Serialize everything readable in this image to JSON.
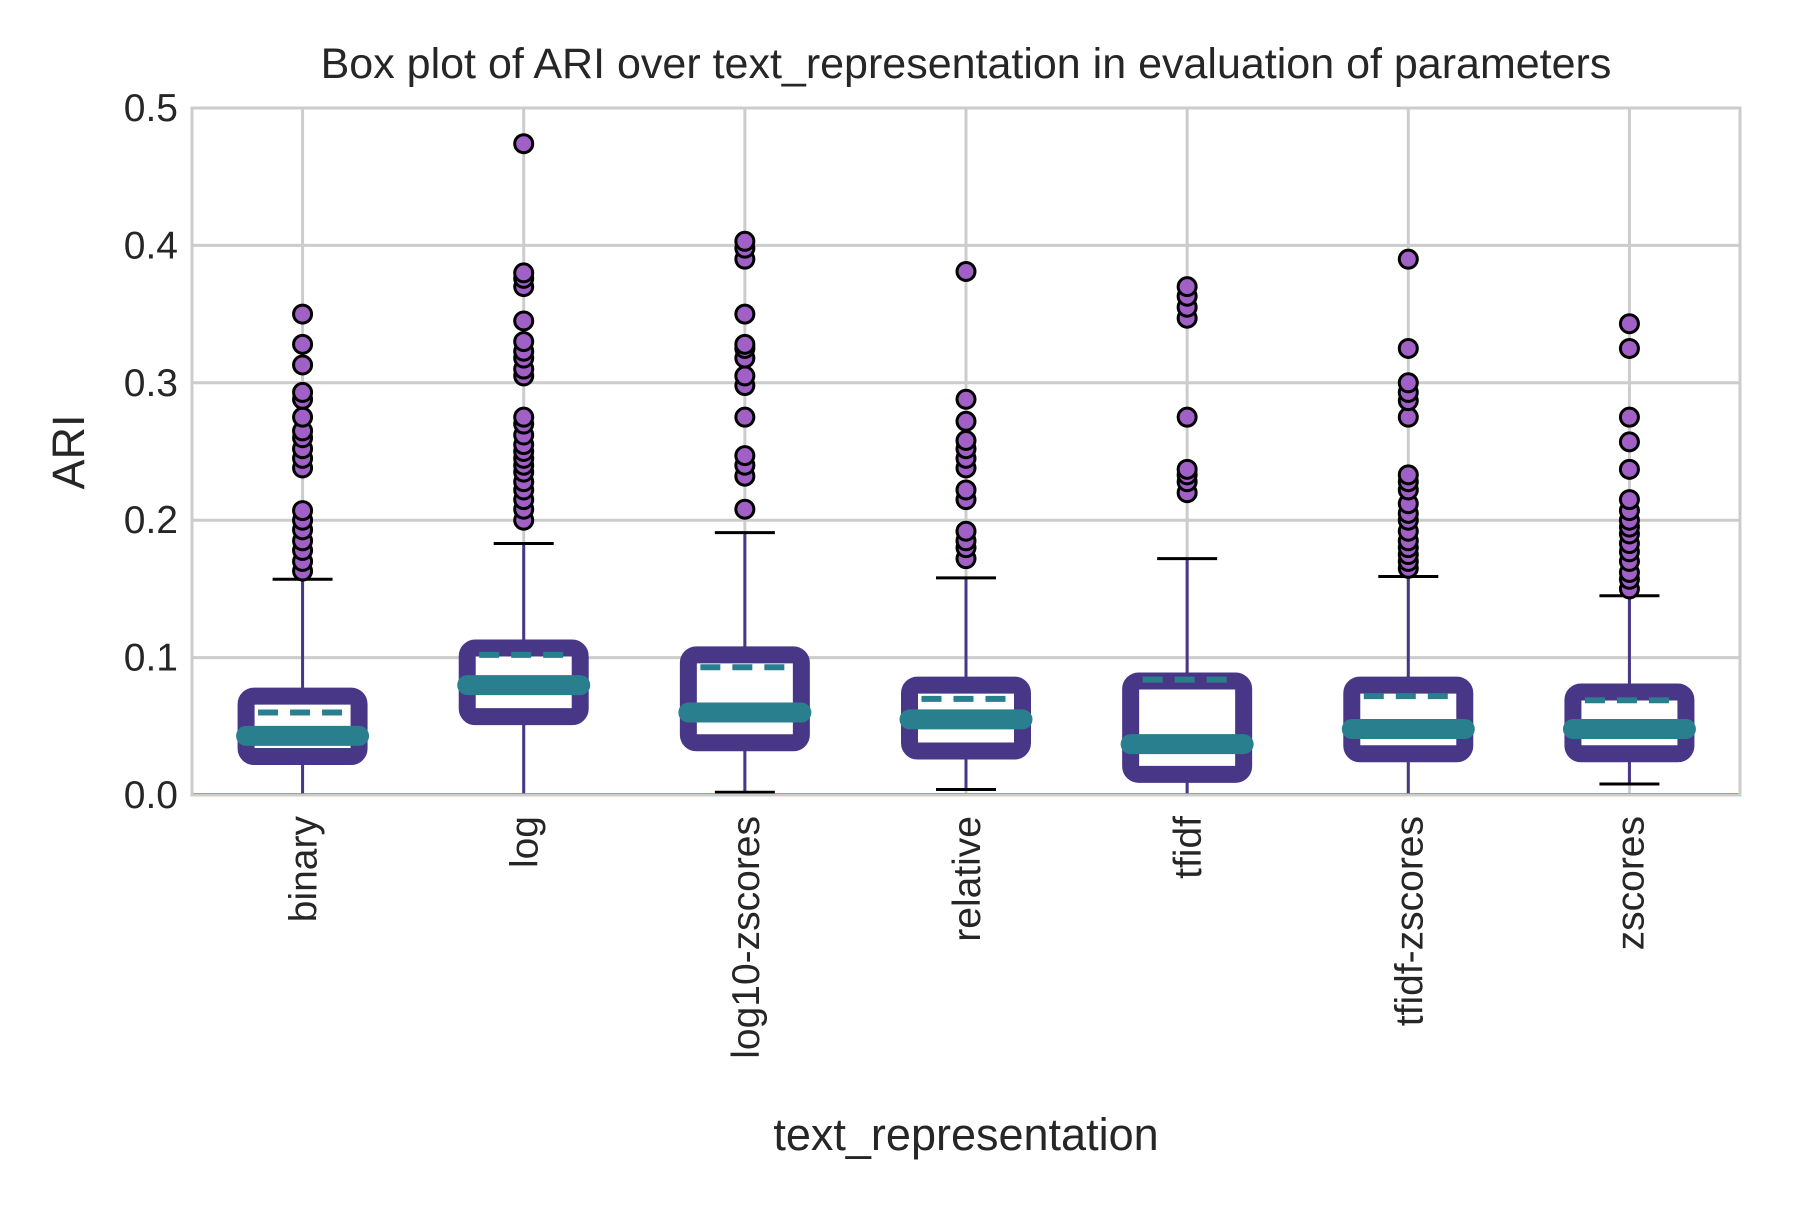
{
  "chart_data": {
    "type": "box",
    "title": "Box plot of ARI over text_representation in evaluation of parameters",
    "xlabel": "text_representation",
    "ylabel": "ARI",
    "ylim": [
      0.0,
      0.5
    ],
    "yticks": [
      "0.0",
      "0.1",
      "0.2",
      "0.3",
      "0.4",
      "0.5"
    ],
    "grid": true,
    "reference_line_y": 0.0,
    "categories": [
      "binary",
      "log",
      "log10-zscores",
      "relative",
      "tfidf",
      "tfidf-zscores",
      "zscores"
    ],
    "boxes": [
      {
        "category": "binary",
        "whislo": 0.0,
        "q1": 0.028,
        "median": 0.043,
        "mean": 0.06,
        "q3": 0.072,
        "whishi": 0.157,
        "fliers": [
          0.163,
          0.17,
          0.178,
          0.185,
          0.193,
          0.2,
          0.207,
          0.238,
          0.245,
          0.252,
          0.26,
          0.265,
          0.275,
          0.288,
          0.293,
          0.313,
          0.328,
          0.35
        ]
      },
      {
        "category": "log",
        "whislo": 0.0,
        "q1": 0.057,
        "median": 0.08,
        "mean": 0.102,
        "q3": 0.107,
        "whishi": 0.183,
        "fliers": [
          0.2,
          0.208,
          0.215,
          0.222,
          0.228,
          0.235,
          0.24,
          0.245,
          0.25,
          0.255,
          0.262,
          0.27,
          0.275,
          0.305,
          0.31,
          0.318,
          0.323,
          0.33,
          0.345,
          0.37,
          0.376,
          0.38,
          0.474
        ]
      },
      {
        "category": "log10-zscores",
        "whislo": 0.002,
        "q1": 0.038,
        "median": 0.06,
        "mean": 0.093,
        "q3": 0.102,
        "whishi": 0.191,
        "fliers": [
          0.208,
          0.232,
          0.24,
          0.247,
          0.275,
          0.298,
          0.305,
          0.318,
          0.325,
          0.328,
          0.35,
          0.39,
          0.398,
          0.403
        ]
      },
      {
        "category": "relative",
        "whislo": 0.004,
        "q1": 0.032,
        "median": 0.055,
        "mean": 0.07,
        "q3": 0.08,
        "whishi": 0.158,
        "fliers": [
          0.172,
          0.18,
          0.185,
          0.192,
          0.215,
          0.222,
          0.238,
          0.245,
          0.252,
          0.258,
          0.272,
          0.288,
          0.381
        ]
      },
      {
        "category": "tfidf",
        "whislo": 0.0,
        "q1": 0.015,
        "median": 0.037,
        "mean": 0.084,
        "q3": 0.083,
        "whishi": 0.172,
        "fliers": [
          0.22,
          0.228,
          0.233,
          0.237,
          0.275,
          0.347,
          0.355,
          0.363,
          0.37
        ]
      },
      {
        "category": "tfidf-zscores",
        "whislo": 0.0,
        "q1": 0.03,
        "median": 0.048,
        "mean": 0.072,
        "q3": 0.08,
        "whishi": 0.159,
        "fliers": [
          0.165,
          0.17,
          0.175,
          0.18,
          0.185,
          0.192,
          0.2,
          0.205,
          0.212,
          0.222,
          0.228,
          0.233,
          0.275,
          0.287,
          0.293,
          0.3,
          0.325,
          0.39
        ]
      },
      {
        "category": "zscores",
        "whislo": 0.008,
        "q1": 0.03,
        "median": 0.048,
        "mean": 0.069,
        "q3": 0.075,
        "whishi": 0.145,
        "fliers": [
          0.15,
          0.157,
          0.162,
          0.17,
          0.177,
          0.183,
          0.19,
          0.195,
          0.2,
          0.207,
          0.215,
          0.237,
          0.257,
          0.275,
          0.325,
          0.343
        ]
      }
    ],
    "colors": {
      "box": "#483786",
      "median": "#2a7f8e",
      "mean_line": "#2a7f8e",
      "whisker": "#483786",
      "cap": "#000000",
      "flier_fill": "#a160c6",
      "flier_edge": "#000000",
      "grid": "#cccccc",
      "reference_line": "#ff3b3b",
      "text": "#262626"
    }
  }
}
